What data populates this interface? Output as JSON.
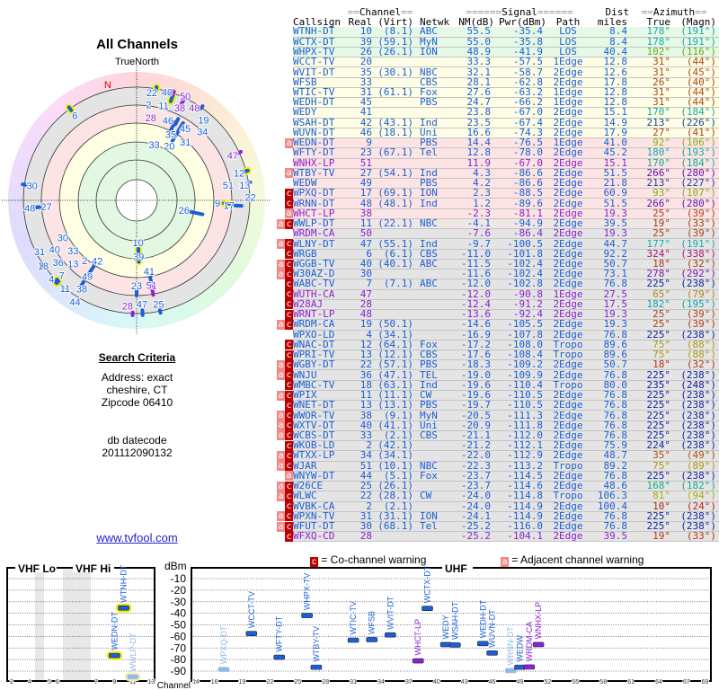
{
  "left": {
    "title": "All Channels",
    "true_north": "TrueNorth",
    "north_marker": "N",
    "search_title": "Search Criteria",
    "address_line": "Address: exact",
    "city_line": "cheshire, CT",
    "zip_line": "Zipcode 06410",
    "db_label": "db datecode",
    "db_value": "201112090132",
    "link": "www.tvfool.com"
  },
  "table": {
    "group_channel": "Channel",
    "group_signal": "Signal",
    "group_dist": "Dist",
    "group_azimuth": "Azimuth",
    "headers": [
      "Callsign",
      "Real",
      "(Virt)",
      "Netwk",
      "NM(dB)",
      "Pwr(dBm)",
      "Path",
      "miles",
      "True",
      "(Magn)"
    ],
    "rows": [
      [
        "",
        "WTNH-DT",
        "10",
        "(8.1)",
        "ABC",
        "55.5",
        "-35.4",
        "LOS",
        "8.4",
        "178°",
        "(191°)",
        "d",
        "g"
      ],
      [
        "",
        "WCTX-DT",
        "39",
        "(59.1)",
        "MyN",
        "55.0",
        "-35.8",
        "LOS",
        "8.4",
        "178°",
        "(191°)",
        "d",
        "g"
      ],
      [
        "",
        "WHPX-TV",
        "26",
        "(26.1)",
        "ION",
        "48.9",
        "-41.9",
        "LOS",
        "40.4",
        "102°",
        "(116°)",
        "d",
        "g"
      ],
      [
        "",
        "WCCT-TV",
        "20",
        "",
        "",
        "33.3",
        "-57.5",
        "1Edge",
        "12.8",
        "31°",
        "(44°)",
        "d",
        "y"
      ],
      [
        "",
        "WVIT-DT",
        "35",
        "(30.1)",
        "NBC",
        "32.1",
        "-58.7",
        "2Edge",
        "12.6",
        "31°",
        "(45°)",
        "d",
        "y"
      ],
      [
        "",
        "WFSB",
        "33",
        "",
        "CBS",
        "28.1",
        "-62.8",
        "2Edge",
        "17.8",
        "26°",
        "(40°)",
        "d",
        "y"
      ],
      [
        "",
        "WTIC-TV",
        "31",
        "(61.1)",
        "Fox",
        "27.6",
        "-63.2",
        "1Edge",
        "12.8",
        "31°",
        "(44°)",
        "d",
        "y"
      ],
      [
        "",
        "WEDH-DT",
        "45",
        "",
        "PBS",
        "24.7",
        "-66.2",
        "1Edge",
        "12.8",
        "31°",
        "(44°)",
        "d",
        "y"
      ],
      [
        "",
        "WEDY",
        "41",
        "",
        "",
        "23.8",
        "-67.0",
        "2Edge",
        "15.1",
        "170°",
        "(184°)",
        "d",
        "y"
      ],
      [
        "",
        "WSAH-DT",
        "42",
        "(43.1)",
        "Ind",
        "23.5",
        "-67.4",
        "2Edge",
        "14.9",
        "213°",
        "(226°)",
        "d",
        "y"
      ],
      [
        "",
        "WUVN-DT",
        "46",
        "(18.1)",
        "Uni",
        "16.6",
        "-74.3",
        "2Edge",
        "17.9",
        "27°",
        "(41°)",
        "d",
        "y"
      ],
      [
        "a",
        "WEDN-DT",
        "9",
        "",
        "PBS",
        "14.4",
        "-76.5",
        "1Edge",
        "41.0",
        "92°",
        "(106°)",
        "d",
        "p"
      ],
      [
        "",
        "WFTY-DT",
        "23",
        "(67.1)",
        "Tel",
        "12.8",
        "-78.0",
        "2Edge",
        "45.2",
        "180°",
        "(193°)",
        "d",
        "p"
      ],
      [
        "",
        "WNHX-LP",
        "51",
        "",
        "",
        "11.9",
        "-67.0",
        "2Edge",
        "15.1",
        "170°",
        "(184°)",
        "p",
        "p"
      ],
      [
        "a",
        "WTBY-TV",
        "27",
        "(54.1)",
        "Ind",
        "4.3",
        "-86.6",
        "2Edge",
        "51.5",
        "266°",
        "(280°)",
        "d",
        "p"
      ],
      [
        "",
        "WEDW",
        "49",
        "",
        "PBS",
        "4.2",
        "-86.6",
        "2Edge",
        "21.8",
        "213°",
        "(227°)",
        "d",
        "p"
      ],
      [
        "c",
        "WPXQ-DT",
        "17",
        "(69.1)",
        "ION",
        "2.3",
        "-88.5",
        "2Edge",
        "60.9",
        "93°",
        "(107°)",
        "d",
        "p"
      ],
      [
        "c",
        "WRNN-DT",
        "48",
        "(48.1)",
        "Ind",
        "1.2",
        "-89.6",
        "2Edge",
        "51.5",
        "266°",
        "(280°)",
        "d",
        "p"
      ],
      [
        "a",
        "WHCT-LP",
        "38",
        "",
        "",
        "-2.3",
        "-81.1",
        "2Edge",
        "19.3",
        "25°",
        "(39°)",
        "p",
        "p"
      ],
      [
        "ac",
        "WWLP-DT",
        "11",
        "(22.1)",
        "NBC",
        "-4.1",
        "-94.9",
        "2Edge",
        "39.5",
        "19°",
        "(33°)",
        "d",
        "q"
      ],
      [
        "",
        "WRDM-CA",
        "50",
        "",
        "",
        "-7.6",
        "-86.4",
        "2Edge",
        "19.3",
        "25°",
        "(39°)",
        "p",
        "x"
      ],
      [
        "ac",
        "WLNY-DT",
        "47",
        "(55.1)",
        "Ind",
        "-9.7",
        "-100.5",
        "2Edge",
        "44.7",
        "177°",
        "(191°)",
        "d",
        "x"
      ],
      [
        "c",
        "WRGB",
        "6",
        "(6.1)",
        "CBS",
        "-11.0",
        "-101.8",
        "2Edge",
        "92.2",
        "324°",
        "(338°)",
        "d",
        "x"
      ],
      [
        "ac",
        "WGGB-TV",
        "40",
        "(40.1)",
        "ABC",
        "-11.5",
        "-102.4",
        "2Edge",
        "50.7",
        "18°",
        "(32°)",
        "d",
        "x"
      ],
      [
        "ac",
        "W30AZ-D",
        "30",
        "",
        "",
        "-11.6",
        "-102.4",
        "2Edge",
        "73.1",
        "278°",
        "(292°)",
        "d",
        "x"
      ],
      [
        "c",
        "WABC-TV",
        "7",
        "(7.1)",
        "ABC",
        "-12.0",
        "-102.8",
        "2Edge",
        "76.8",
        "225°",
        "(238°)",
        "d",
        "x"
      ],
      [
        "c",
        "WUTH-CA",
        "47",
        "",
        "",
        "-12.0",
        "-90.8",
        "1Edge",
        "27.5",
        "65°",
        "(79°)",
        "p",
        "x"
      ],
      [
        "c",
        "W28AJ",
        "28",
        "",
        "",
        "-12.4",
        "-91.2",
        "2Edge",
        "17.5",
        "182°",
        "(195°)",
        "p",
        "x"
      ],
      [
        "c",
        "WRNT-LP",
        "48",
        "",
        "",
        "-13.6",
        "-92.4",
        "2Edge",
        "19.3",
        "25°",
        "(39°)",
        "p",
        "x"
      ],
      [
        "ac",
        "WRDM-CA",
        "19",
        "(50.1)",
        "",
        "-14.6",
        "-105.5",
        "2Edge",
        "19.3",
        "25°",
        "(39°)",
        "d",
        "x"
      ],
      [
        "",
        "WPXO-LD",
        "4",
        "(34.1)",
        "",
        "-16.9",
        "-107.8",
        "2Edge",
        "76.8",
        "225°",
        "(238°)",
        "d",
        "x"
      ],
      [
        "c",
        "WNAC-DT",
        "12",
        "(64.1)",
        "Fox",
        "-17.2",
        "-108.0",
        "Tropo",
        "89.6",
        "75°",
        "(88°)",
        "d",
        "x"
      ],
      [
        "c",
        "WPRI-TV",
        "13",
        "(12.1)",
        "CBS",
        "-17.6",
        "-108.4",
        "Tropo",
        "89.6",
        "75°",
        "(88°)",
        "d",
        "x"
      ],
      [
        "ac",
        "WGBY-DT",
        "22",
        "(57.1)",
        "PBS",
        "-18.3",
        "-109.2",
        "2Edge",
        "50.7",
        "18°",
        "(32°)",
        "d",
        "x"
      ],
      [
        "ac",
        "WNJU",
        "36",
        "(47.1)",
        "TEL",
        "-19.0",
        "-109.9",
        "2Edge",
        "76.8",
        "225°",
        "(238°)",
        "d",
        "x"
      ],
      [
        "c",
        "WMBC-TV",
        "18",
        "(63.1)",
        "Ind",
        "-19.6",
        "-110.4",
        "Tropo",
        "80.0",
        "235°",
        "(248°)",
        "d",
        "x"
      ],
      [
        "ac",
        "WPIX",
        "11",
        "(11.1)",
        "CW",
        "-19.6",
        "-110.5",
        "2Edge",
        "76.8",
        "225°",
        "(238°)",
        "d",
        "x"
      ],
      [
        "c",
        "WNET-DT",
        "13",
        "(13.1)",
        "PBS",
        "-19.7",
        "-110.5",
        "2Edge",
        "76.8",
        "225°",
        "(238°)",
        "d",
        "x"
      ],
      [
        "ac",
        "WWOR-TV",
        "38",
        "(9.1)",
        "MyN",
        "-20.5",
        "-111.3",
        "2Edge",
        "76.8",
        "225°",
        "(238°)",
        "d",
        "x"
      ],
      [
        "ac",
        "WXTV-DT",
        "40",
        "(41.1)",
        "Uni",
        "-20.9",
        "-111.8",
        "2Edge",
        "76.8",
        "225°",
        "(238°)",
        "d",
        "x"
      ],
      [
        "ac",
        "WCBS-DT",
        "33",
        "(2.1)",
        "CBS",
        "-21.1",
        "-112.0",
        "2Edge",
        "76.8",
        "225°",
        "(238°)",
        "d",
        "x"
      ],
      [
        "c",
        "WKOB-LD",
        "2",
        "(42.1)",
        "",
        "-21.2",
        "-112.1",
        "2Edge",
        "75.9",
        "224°",
        "(238°)",
        "d",
        "x"
      ],
      [
        "ac",
        "WTXX-LP",
        "34",
        "(34.1)",
        "",
        "-22.0",
        "-112.9",
        "2Edge",
        "48.7",
        "35°",
        "(49°)",
        "d",
        "x"
      ],
      [
        "ac",
        "WJAR",
        "51",
        "(10.1)",
        "NBC",
        "-22.3",
        "-113.2",
        "Tropo",
        "89.2",
        "75°",
        "(89°)",
        "d",
        "x"
      ],
      [
        "a",
        "WNYW-DT",
        "44",
        "(5.1)",
        "Fox",
        "-23.7",
        "-114.5",
        "2Edge",
        "76.8",
        "225°",
        "(238°)",
        "d",
        "x"
      ],
      [
        "ac",
        "W26CE",
        "25",
        "(26.1)",
        "",
        "-23.7",
        "-114.6",
        "2Edge",
        "48.6",
        "168°",
        "(182°)",
        "d",
        "x"
      ],
      [
        "ac",
        "WLWC",
        "22",
        "(28.1)",
        "CW",
        "-24.0",
        "-114.8",
        "Tropo",
        "106.3",
        "81°",
        "(94°)",
        "d",
        "x"
      ],
      [
        "c",
        "WVBK-CA",
        "2",
        "(2.1)",
        "",
        "-24.0",
        "-114.9",
        "2Edge",
        "100.4",
        "10°",
        "(24°)",
        "d",
        "x"
      ],
      [
        "ac",
        "WPXN-TV",
        "31",
        "(31.1)",
        "ION",
        "-24.1",
        "-114.9",
        "2Edge",
        "76.8",
        "225°",
        "(238°)",
        "d",
        "x"
      ],
      [
        "ac",
        "WFUT-DT",
        "30",
        "(68.1)",
        "Tel",
        "-25.2",
        "-116.0",
        "2Edge",
        "76.8",
        "225°",
        "(238°)",
        "d",
        "x"
      ],
      [
        "c",
        "WFXQ-CD",
        "28",
        "",
        "",
        "-25.2",
        "-104.1",
        "2Edge",
        "39.5",
        "19°",
        "(33°)",
        "p",
        "x"
      ]
    ]
  },
  "legend": {
    "co_badge": "c",
    "co_text": " = Co-channel warning",
    "adj_badge": "a",
    "adj_text": " = Adjacent channel warning"
  },
  "spectrum": {
    "vhf_lo": "VHF Lo",
    "vhf_hi": "VHF Hi",
    "uhf": "UHF",
    "unit": "dBm",
    "channel_label": "Channel",
    "db_ticks": [
      "-10",
      "-20",
      "-30",
      "-40",
      "-50",
      "-60",
      "-70",
      "-80",
      "-90"
    ],
    "vhf_channels": [
      2,
      4,
      5,
      6,
      7,
      9,
      11,
      13
    ],
    "uhf_channels": [
      14,
      16,
      19,
      22,
      25,
      28,
      31,
      34,
      37,
      40,
      43,
      46,
      49,
      52,
      55,
      58,
      61,
      64,
      67,
      69
    ],
    "markers": [
      {
        "label": "WEDN-DT",
        "ch": 9,
        "dbm": -76.5,
        "style": "d",
        "halo": true
      },
      {
        "label": "WTNH-DT",
        "ch": 10,
        "dbm": -35.4,
        "style": "d",
        "halo": true
      },
      {
        "label": "WWLP-DT",
        "ch": 11,
        "dbm": -94.9,
        "style": "f",
        "halo": true
      },
      {
        "label": "WPXQ-DT",
        "ch": 17,
        "dbm": -88.5,
        "style": "f"
      },
      {
        "label": "WCCT-TV",
        "ch": 20,
        "dbm": -57.5,
        "style": "d"
      },
      {
        "label": "WFTY-DT",
        "ch": 23,
        "dbm": -78.0,
        "style": "d"
      },
      {
        "label": "WHPX-TV",
        "ch": 26,
        "dbm": -41.9,
        "style": "d"
      },
      {
        "label": "WTBY-TV",
        "ch": 27,
        "dbm": -86.6,
        "style": "d"
      },
      {
        "label": "WTIC-TV",
        "ch": 31,
        "dbm": -63.2,
        "style": "d"
      },
      {
        "label": "WFSB",
        "ch": 33,
        "dbm": -62.8,
        "style": "d"
      },
      {
        "label": "WVIT-DT",
        "ch": 35,
        "dbm": -58.7,
        "style": "d"
      },
      {
        "label": "WHCT-LP",
        "ch": 38,
        "dbm": -81.1,
        "style": "p"
      },
      {
        "label": "WCTX-DT",
        "ch": 39,
        "dbm": -35.8,
        "style": "d"
      },
      {
        "label": "WEDY",
        "ch": 41,
        "dbm": -67.0,
        "style": "d"
      },
      {
        "label": "WSAH-DT",
        "ch": 42,
        "dbm": -67.4,
        "style": "d"
      },
      {
        "label": "WEDH-DT",
        "ch": 45,
        "dbm": -66.2,
        "style": "d"
      },
      {
        "label": "WUVN-DT",
        "ch": 46,
        "dbm": -74.3,
        "style": "d"
      },
      {
        "label": "WRNN-DT",
        "ch": 48,
        "dbm": -89.6,
        "style": "f"
      },
      {
        "label": "WEDW",
        "ch": 49,
        "dbm": -86.6,
        "style": "d"
      },
      {
        "label": "WRDM-CA",
        "ch": 50,
        "dbm": -86.4,
        "style": "p"
      },
      {
        "label": "WNHX-LP",
        "ch": 51,
        "dbm": -67.0,
        "style": "p"
      }
    ]
  },
  "colors": {
    "digital": "#1a5fd6",
    "lowpower": "#8a22d0",
    "faded": "#90b8e8",
    "co": "#c00000",
    "adj": "#f08a8a",
    "north": "#d00000"
  }
}
